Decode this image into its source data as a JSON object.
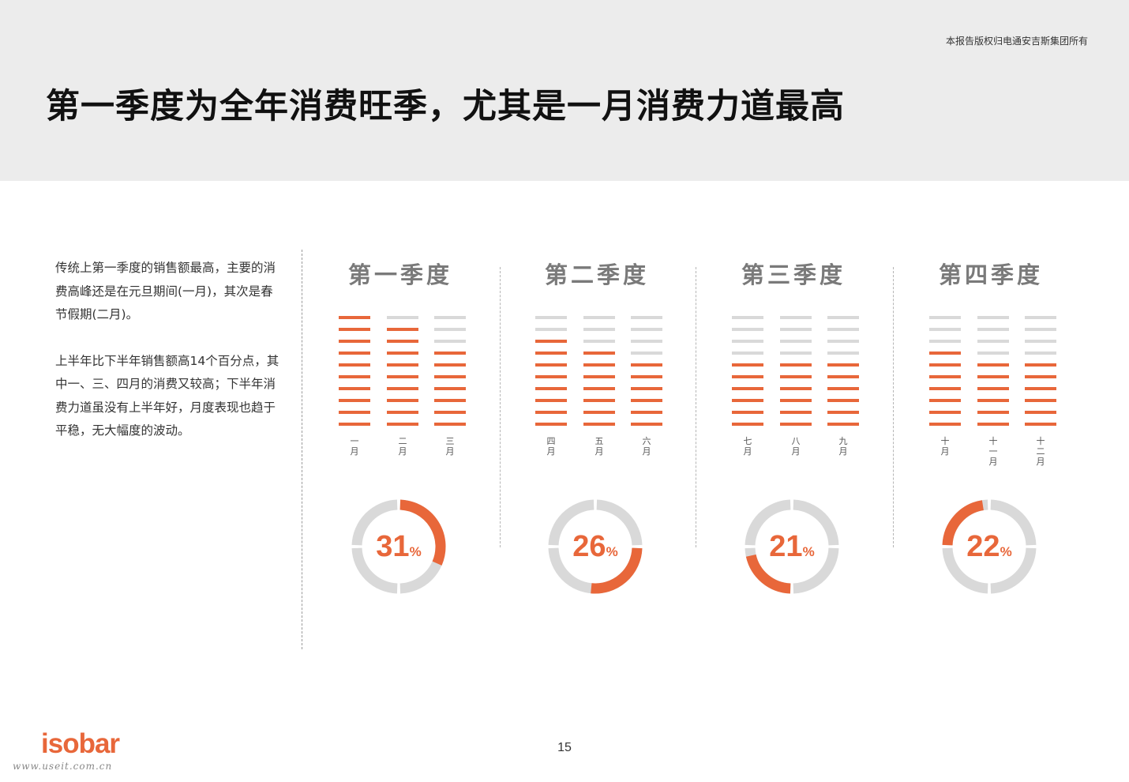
{
  "header": {
    "copyright": "本报告版权归电通安吉斯集团所有",
    "title": "第一季度为全年消费旺季，尤其是一月消费力道最高"
  },
  "description": {
    "paragraph1": "传统上第一季度的销售额最高，主要的消费高峰还是在元旦期间(一月)，其次是春节假期(二月)。",
    "paragraph2": "上半年比下半年销售额高14个百分点，其中一、三、四月的消费又较高；下半年消费力道虽没有上半年好，月度表现也趋于平稳，无大幅度的波动。"
  },
  "colors": {
    "accent": "#e8673a",
    "inactive": "#d9d9d9",
    "title_gray": "#7a7a7a"
  },
  "chart_data": {
    "type": "bar",
    "bar_segments_total": 10,
    "quarters": [
      {
        "name": "第一季度",
        "share": 31,
        "pct_symbol": "%",
        "months": [
          {
            "label": [
              "一",
              "月"
            ],
            "level": 10
          },
          {
            "label": [
              "二",
              "月"
            ],
            "level": 9
          },
          {
            "label": [
              "三",
              "月"
            ],
            "level": 7
          }
        ]
      },
      {
        "name": "第二季度",
        "share": 26,
        "pct_symbol": "%",
        "months": [
          {
            "label": [
              "四",
              "月"
            ],
            "level": 8
          },
          {
            "label": [
              "五",
              "月"
            ],
            "level": 7
          },
          {
            "label": [
              "六",
              "月"
            ],
            "level": 6
          }
        ]
      },
      {
        "name": "第三季度",
        "share": 21,
        "pct_symbol": "%",
        "months": [
          {
            "label": [
              "七",
              "月"
            ],
            "level": 6
          },
          {
            "label": [
              "八",
              "月"
            ],
            "level": 6
          },
          {
            "label": [
              "九",
              "月"
            ],
            "level": 6
          }
        ]
      },
      {
        "name": "第四季度",
        "share": 22,
        "pct_symbol": "%",
        "months": [
          {
            "label": [
              "十",
              "月"
            ],
            "level": 7
          },
          {
            "label": [
              "十",
              "一",
              "月"
            ],
            "level": 6
          },
          {
            "label": [
              "十",
              "二",
              "月"
            ],
            "level": 6
          }
        ]
      }
    ]
  },
  "footer": {
    "logo": "isobar",
    "watermark": "www.useit.com.cn",
    "page_number": "15"
  }
}
